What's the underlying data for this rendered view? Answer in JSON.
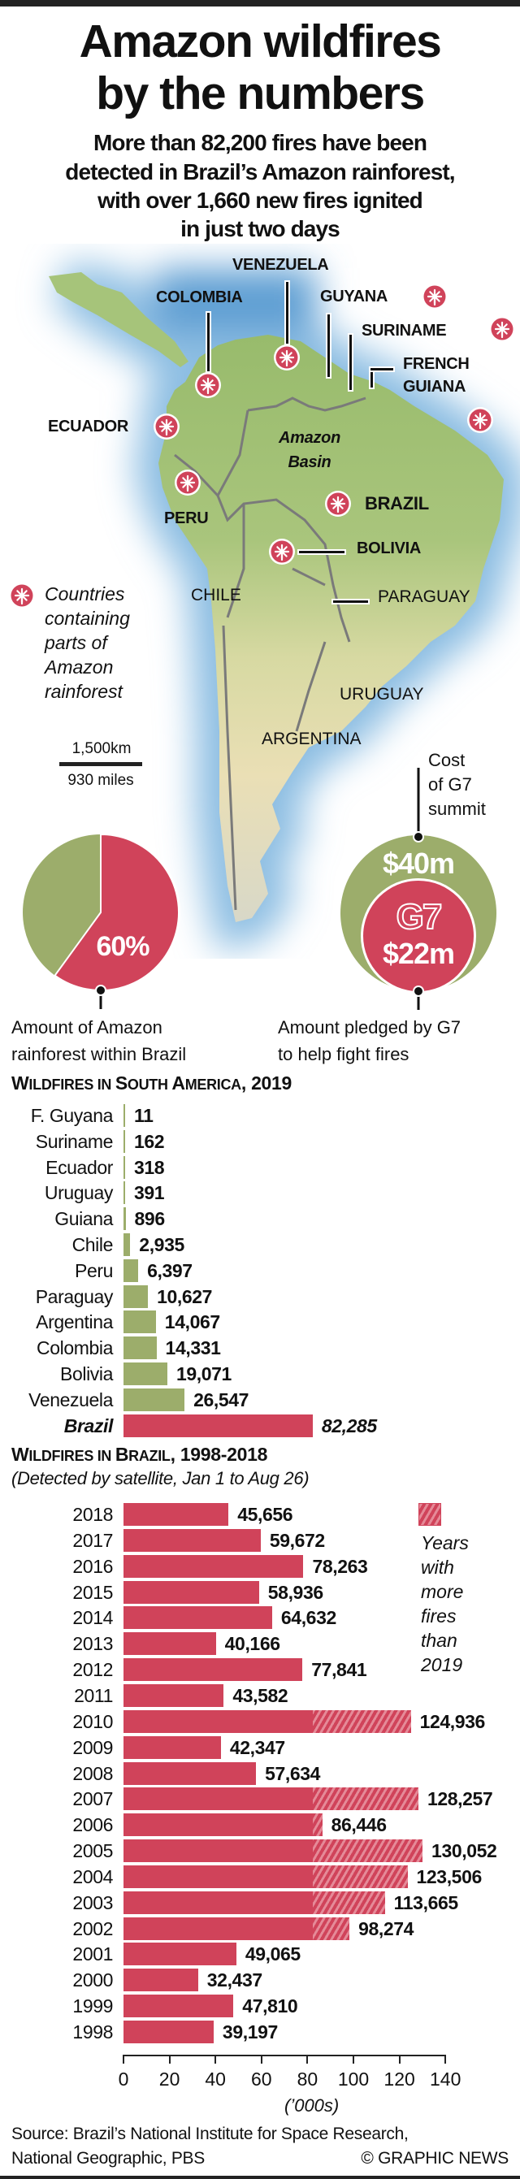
{
  "header": {
    "title_line1": "Amazon wildfires",
    "title_line2": "by the numbers",
    "subtitle_lines": [
      "More than 82,200 fires have been",
      "detected in Brazil’s Amazon rainforest,",
      "with over 1,660 new fires ignited",
      "in just two days"
    ]
  },
  "map": {
    "labels": {
      "venezuela": "VENEZUELA",
      "colombia": "COLOMBIA",
      "guyana": "GUYANA",
      "suriname": "SURINAME",
      "french_guiana_1": "FRENCH",
      "french_guiana_2": "GUIANA",
      "ecuador": "ECUADOR",
      "amazon_basin_1": "Amazon",
      "amazon_basin_2": "Basin",
      "peru": "PERU",
      "brazil": "BRAZIL",
      "bolivia": "BOLIVIA",
      "chile": "CHILE",
      "paraguay": "PARAGUAY",
      "uruguay": "URUGUAY",
      "argentina": "ARGENTINA"
    },
    "legend_lines": [
      "Countries",
      "containing",
      "parts of",
      "Amazon",
      "rainforest"
    ],
    "legend_icon": "rainforest-country-icon",
    "scale_km": "1,500km",
    "scale_miles": "930 miles"
  },
  "pie": {
    "value_percent": 60,
    "label": "60%",
    "caption_lines": [
      "Amount of Amazon",
      "rainforest within Brazil"
    ]
  },
  "g7": {
    "cost_lines": [
      "Cost",
      "of G7",
      "summit"
    ],
    "cost_value": "$40m",
    "pledge_value": "$22m",
    "logo_text": "G7",
    "caption_lines": [
      "Amount pledged by G7",
      "to help fight fires"
    ]
  },
  "colors": {
    "red": "#d0435a",
    "green": "#9cad6b",
    "text": "#111111"
  },
  "chart_data": [
    {
      "type": "bar",
      "title_cap1": "W",
      "title_sc1": "ILDFIRES IN ",
      "title_cap2": "S",
      "title_sc2": "OUTH ",
      "title_cap3": "A",
      "title_sc3": "MERICA",
      "title_tail": ", 2019",
      "categories": [
        "F. Guyana",
        "Suriname",
        "Ecuador",
        "Uruguay",
        "Guiana",
        "Chile",
        "Peru",
        "Paraguay",
        "Argentina",
        "Colombia",
        "Bolivia",
        "Venezuela",
        "Brazil"
      ],
      "values": [
        11,
        162,
        318,
        391,
        896,
        2935,
        6397,
        10627,
        14067,
        14331,
        19071,
        26547,
        82285
      ],
      "value_labels": [
        "11",
        "162",
        "318",
        "391",
        "896",
        "2,935",
        "6,397",
        "10,627",
        "14,067",
        "14,331",
        "19,071",
        "26,547",
        "82,285"
      ],
      "highlight": "Brazil"
    },
    {
      "type": "bar",
      "title_cap1": "W",
      "title_sc1": "ILDFIRES IN ",
      "title_cap2": "B",
      "title_sc2": "RAZIL",
      "title_tail": ", 1998-2018",
      "subtitle": "(Detected by satellite, Jan 1 to Aug 26)",
      "categories": [
        "2018",
        "2017",
        "2016",
        "2015",
        "2014",
        "2013",
        "2012",
        "2011",
        "2010",
        "2009",
        "2008",
        "2007",
        "2006",
        "2005",
        "2004",
        "2003",
        "2002",
        "2001",
        "2000",
        "1999",
        "1998"
      ],
      "values": [
        45656,
        59672,
        78263,
        58936,
        64632,
        40166,
        77841,
        43582,
        124936,
        42347,
        57634,
        128257,
        86446,
        130052,
        123506,
        113665,
        98274,
        49065,
        32437,
        47810,
        39197
      ],
      "value_labels": [
        "45,656",
        "59,672",
        "78,263",
        "58,936",
        "64,632",
        "40,166",
        "77,841",
        "43,582",
        "124,936",
        "42,347",
        "57,634",
        "128,257",
        "86,446",
        "130,052",
        "123,506",
        "113,665",
        "98,274",
        "49,065",
        "32,437",
        "47,810",
        "39,197"
      ],
      "reference_value": 82285,
      "xlim": [
        0,
        140
      ],
      "xticks": [
        "0",
        "20",
        "40",
        "60",
        "80",
        "100",
        "120",
        "140"
      ],
      "xlabel": "(’000s)",
      "legend_lines": [
        "Years",
        "with",
        "more",
        "fires",
        "than",
        "2019"
      ]
    }
  ],
  "footer": {
    "source_line1": "Source: Brazil’s National Institute for Space Research,",
    "source_line2": "National Geographic, PBS",
    "credit": "© GRAPHIC NEWS"
  }
}
